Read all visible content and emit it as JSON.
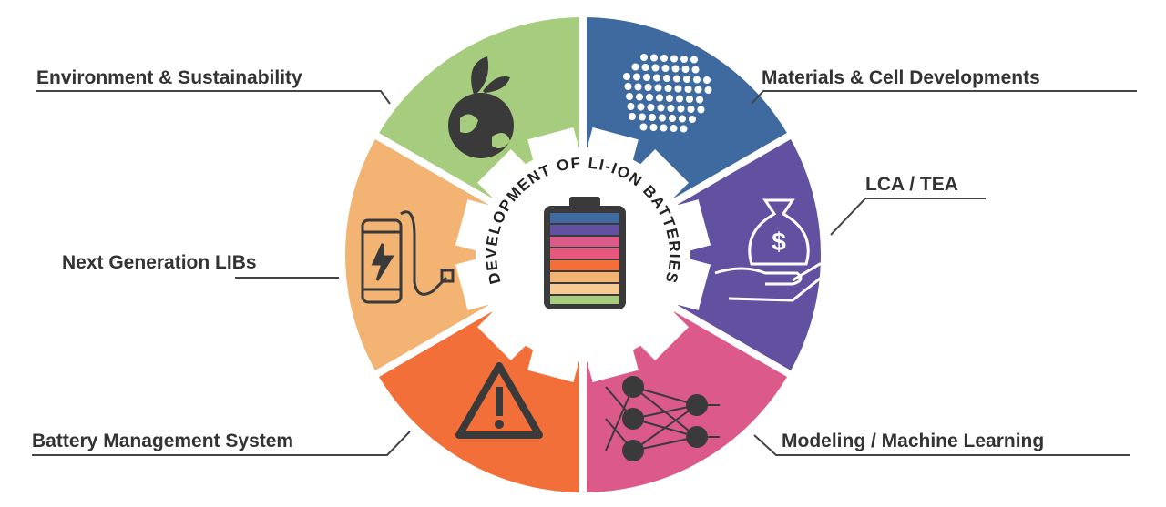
{
  "center_title": "DEVELOPMENT OF LI-ION BATTERIES",
  "nodes": [
    {
      "label": "Materials & Cell Developments"
    },
    {
      "label": "LCA / TEA"
    },
    {
      "label": "Modeling / Machine Learning"
    },
    {
      "label": "Battery Management System"
    },
    {
      "label": "Next Generation LIBs"
    },
    {
      "label": "Environment & Sustainability"
    }
  ]
}
